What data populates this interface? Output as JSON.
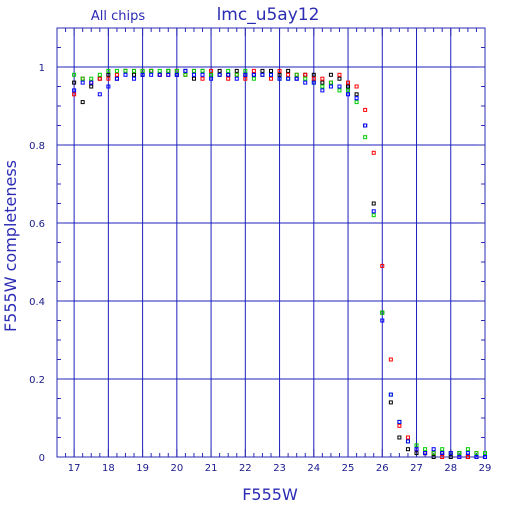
{
  "chart_data": {
    "type": "scatter",
    "title": "lmc_u5ay12",
    "subtitle": "All chips",
    "xlabel": "F555W",
    "ylabel": "F555W completeness",
    "xlim": [
      16.5,
      29
    ],
    "ylim": [
      0,
      1.1
    ],
    "x_ticks": [
      17,
      18,
      19,
      20,
      21,
      22,
      23,
      24,
      25,
      26,
      27,
      28,
      29
    ],
    "y_ticks": [
      0,
      0.2,
      0.4,
      0.6,
      0.8,
      1
    ],
    "y_tick_labels": [
      "0",
      "0.2",
      "0.4",
      "0.6",
      "0.8",
      "1"
    ],
    "grid": true,
    "colors": {
      "axis": "#2b2bb3",
      "grid": "#1f1fbf",
      "title": "#2b2bb3",
      "black_series": "#000000",
      "red_series": "#ff0000",
      "green_series": "#00cc00",
      "blue_series": "#0000ff"
    },
    "series": [
      {
        "color": "black",
        "points": [
          [
            17.0,
            0.96
          ],
          [
            17.25,
            0.91
          ],
          [
            17.5,
            0.95
          ],
          [
            17.75,
            0.97
          ],
          [
            18.0,
            0.98
          ],
          [
            18.25,
            0.97
          ],
          [
            18.5,
            0.99
          ],
          [
            18.75,
            0.98
          ],
          [
            19.0,
            0.98
          ],
          [
            19.25,
            0.99
          ],
          [
            19.5,
            0.98
          ],
          [
            19.75,
            0.99
          ],
          [
            20.0,
            0.98
          ],
          [
            20.25,
            0.99
          ],
          [
            20.5,
            0.97
          ],
          [
            20.75,
            0.99
          ],
          [
            21.0,
            0.98
          ],
          [
            21.25,
            0.99
          ],
          [
            21.5,
            0.98
          ],
          [
            21.75,
            0.99
          ],
          [
            22.0,
            0.98
          ],
          [
            22.25,
            0.98
          ],
          [
            22.5,
            0.99
          ],
          [
            22.75,
            0.99
          ],
          [
            23.0,
            0.98
          ],
          [
            23.25,
            0.99
          ],
          [
            23.5,
            0.97
          ],
          [
            23.75,
            0.98
          ],
          [
            24.0,
            0.98
          ],
          [
            24.25,
            0.96
          ],
          [
            24.5,
            0.98
          ],
          [
            24.75,
            0.97
          ],
          [
            25.0,
            0.95
          ],
          [
            25.25,
            0.93
          ],
          [
            25.5,
            0.85
          ],
          [
            25.75,
            0.65
          ],
          [
            26.0,
            0.37
          ],
          [
            26.25,
            0.14
          ],
          [
            26.5,
            0.05
          ],
          [
            26.75,
            0.02
          ],
          [
            27.0,
            0.01
          ],
          [
            27.25,
            0.01
          ],
          [
            27.5,
            0.0
          ],
          [
            27.75,
            0.01
          ],
          [
            28.0,
            0.0
          ],
          [
            28.25,
            0.01
          ],
          [
            28.5,
            0.0
          ],
          [
            28.75,
            0.0
          ],
          [
            29.0,
            0.0
          ]
        ]
      },
      {
        "color": "red",
        "points": [
          [
            17.0,
            0.93
          ],
          [
            17.25,
            0.97
          ],
          [
            17.5,
            0.96
          ],
          [
            17.75,
            0.97
          ],
          [
            18.0,
            0.97
          ],
          [
            18.25,
            0.98
          ],
          [
            18.5,
            0.99
          ],
          [
            18.75,
            0.99
          ],
          [
            19.0,
            0.99
          ],
          [
            19.25,
            0.99
          ],
          [
            19.5,
            0.98
          ],
          [
            19.75,
            0.98
          ],
          [
            20.0,
            0.99
          ],
          [
            20.25,
            0.98
          ],
          [
            20.5,
            0.99
          ],
          [
            20.75,
            0.97
          ],
          [
            21.0,
            0.99
          ],
          [
            21.25,
            0.98
          ],
          [
            21.5,
            0.97
          ],
          [
            21.75,
            0.98
          ],
          [
            22.0,
            0.97
          ],
          [
            22.25,
            0.99
          ],
          [
            22.5,
            0.98
          ],
          [
            22.75,
            0.97
          ],
          [
            23.0,
            0.99
          ],
          [
            23.25,
            0.98
          ],
          [
            23.5,
            0.98
          ],
          [
            23.75,
            0.98
          ],
          [
            24.0,
            0.97
          ],
          [
            24.25,
            0.97
          ],
          [
            24.5,
            0.96
          ],
          [
            24.75,
            0.98
          ],
          [
            25.0,
            0.96
          ],
          [
            25.25,
            0.95
          ],
          [
            25.5,
            0.89
          ],
          [
            25.75,
            0.78
          ],
          [
            26.0,
            0.49
          ],
          [
            26.25,
            0.25
          ],
          [
            26.5,
            0.08
          ],
          [
            26.75,
            0.05
          ],
          [
            27.0,
            0.02
          ],
          [
            27.25,
            0.01
          ],
          [
            27.5,
            0.01
          ],
          [
            27.75,
            0.0
          ],
          [
            28.0,
            0.01
          ],
          [
            28.25,
            0.0
          ],
          [
            28.5,
            0.0
          ],
          [
            28.75,
            0.01
          ],
          [
            29.0,
            0.0
          ]
        ]
      },
      {
        "color": "green",
        "points": [
          [
            17.0,
            0.98
          ],
          [
            17.25,
            0.97
          ],
          [
            17.5,
            0.97
          ],
          [
            17.75,
            0.98
          ],
          [
            18.0,
            0.99
          ],
          [
            18.25,
            0.99
          ],
          [
            18.5,
            0.99
          ],
          [
            18.75,
            0.99
          ],
          [
            19.0,
            0.99
          ],
          [
            19.25,
            0.99
          ],
          [
            19.5,
            0.99
          ],
          [
            19.75,
            0.99
          ],
          [
            20.0,
            0.99
          ],
          [
            20.25,
            0.98
          ],
          [
            20.5,
            0.99
          ],
          [
            20.75,
            0.99
          ],
          [
            21.0,
            0.98
          ],
          [
            21.25,
            0.98
          ],
          [
            21.5,
            0.99
          ],
          [
            21.75,
            0.98
          ],
          [
            22.0,
            0.99
          ],
          [
            22.25,
            0.97
          ],
          [
            22.5,
            0.98
          ],
          [
            22.75,
            0.98
          ],
          [
            23.0,
            0.97
          ],
          [
            23.25,
            0.97
          ],
          [
            23.5,
            0.98
          ],
          [
            23.75,
            0.97
          ],
          [
            24.0,
            0.96
          ],
          [
            24.25,
            0.95
          ],
          [
            24.5,
            0.96
          ],
          [
            24.75,
            0.94
          ],
          [
            25.0,
            0.94
          ],
          [
            25.25,
            0.91
          ],
          [
            25.5,
            0.82
          ],
          [
            25.75,
            0.62
          ],
          [
            26.0,
            0.37
          ],
          [
            26.25,
            0.16
          ],
          [
            26.5,
            0.09
          ],
          [
            26.75,
            0.04
          ],
          [
            27.0,
            0.03
          ],
          [
            27.25,
            0.02
          ],
          [
            27.5,
            0.01
          ],
          [
            27.75,
            0.02
          ],
          [
            28.0,
            0.01
          ],
          [
            28.25,
            0.01
          ],
          [
            28.5,
            0.02
          ],
          [
            28.75,
            0.01
          ],
          [
            29.0,
            0.01
          ]
        ]
      },
      {
        "color": "blue",
        "points": [
          [
            17.0,
            0.94
          ],
          [
            17.25,
            0.96
          ],
          [
            17.5,
            0.96
          ],
          [
            17.75,
            0.93
          ],
          [
            18.0,
            0.95
          ],
          [
            18.25,
            0.97
          ],
          [
            18.5,
            0.98
          ],
          [
            18.75,
            0.97
          ],
          [
            19.0,
            0.98
          ],
          [
            19.25,
            0.98
          ],
          [
            19.5,
            0.98
          ],
          [
            19.75,
            0.98
          ],
          [
            20.0,
            0.98
          ],
          [
            20.25,
            0.99
          ],
          [
            20.5,
            0.98
          ],
          [
            20.75,
            0.98
          ],
          [
            21.0,
            0.97
          ],
          [
            21.25,
            0.98
          ],
          [
            21.5,
            0.98
          ],
          [
            21.75,
            0.97
          ],
          [
            22.0,
            0.98
          ],
          [
            22.25,
            0.98
          ],
          [
            22.5,
            0.98
          ],
          [
            22.75,
            0.98
          ],
          [
            23.0,
            0.97
          ],
          [
            23.25,
            0.97
          ],
          [
            23.5,
            0.97
          ],
          [
            23.75,
            0.96
          ],
          [
            24.0,
            0.96
          ],
          [
            24.25,
            0.94
          ],
          [
            24.5,
            0.95
          ],
          [
            24.75,
            0.95
          ],
          [
            25.0,
            0.93
          ],
          [
            25.25,
            0.92
          ],
          [
            25.5,
            0.85
          ],
          [
            25.75,
            0.63
          ],
          [
            26.0,
            0.35
          ],
          [
            26.25,
            0.16
          ],
          [
            26.5,
            0.09
          ],
          [
            26.75,
            0.04
          ],
          [
            27.0,
            0.02
          ],
          [
            27.25,
            0.01
          ],
          [
            27.5,
            0.02
          ],
          [
            27.75,
            0.01
          ],
          [
            28.0,
            0.01
          ],
          [
            28.25,
            0.0
          ],
          [
            28.5,
            0.01
          ],
          [
            28.75,
            0.0
          ],
          [
            29.0,
            0.0
          ]
        ]
      }
    ]
  }
}
